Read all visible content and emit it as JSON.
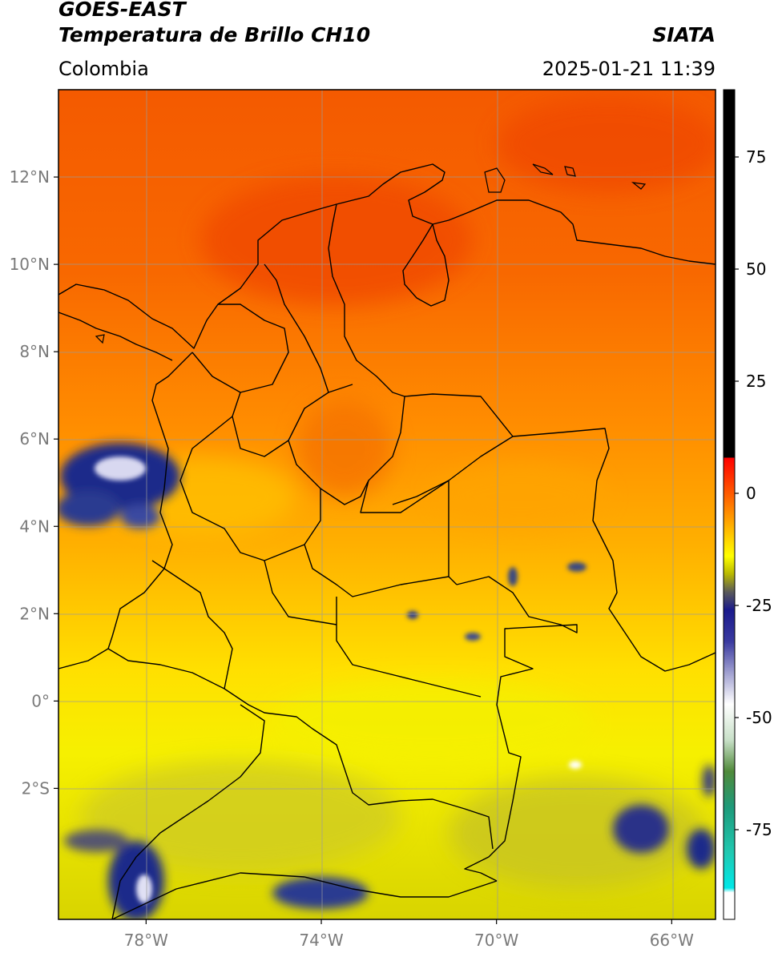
{
  "header": {
    "satellite": "GOES-EAST",
    "product": "Temperatura de Brillo CH10",
    "region": "Colombia",
    "agency": "SIATA",
    "datetime": "2025-01-21 11:39"
  },
  "map": {
    "lon_range": [
      -80,
      -65
    ],
    "lat_range": [
      -5,
      14
    ],
    "lon_ticks": [
      {
        "value": -78,
        "label": "78°W"
      },
      {
        "value": -74,
        "label": "74°W"
      },
      {
        "value": -70,
        "label": "70°W"
      },
      {
        "value": -66,
        "label": "66°W"
      }
    ],
    "lat_ticks": [
      {
        "value": 12,
        "label": "12°N"
      },
      {
        "value": 10,
        "label": "10°N"
      },
      {
        "value": 8,
        "label": "8°N"
      },
      {
        "value": 6,
        "label": "6°N"
      },
      {
        "value": 4,
        "label": "4°N"
      },
      {
        "value": 2,
        "label": "2°N"
      },
      {
        "value": 0,
        "label": "0°"
      },
      {
        "value": -2,
        "label": "2°S"
      }
    ],
    "grid": true,
    "colors": {
      "warm": "#f45a00",
      "mid": "#ff9a00",
      "cool": "#f6f000",
      "cloud": "#1a2b8a",
      "border": "#000000",
      "grid": "#9a9a9a"
    }
  },
  "colorbar": {
    "range": [
      -95,
      90
    ],
    "ticks": [
      {
        "value": 75,
        "label": "75"
      },
      {
        "value": 50,
        "label": "50"
      },
      {
        "value": 25,
        "label": "25"
      },
      {
        "value": 0,
        "label": "0"
      },
      {
        "value": -25,
        "label": "-25"
      },
      {
        "value": -50,
        "label": "-50"
      },
      {
        "value": -75,
        "label": "-75"
      }
    ],
    "stops": [
      {
        "value": 90,
        "color": "#000000"
      },
      {
        "value": 8,
        "color": "#000000"
      },
      {
        "value": 7.9,
        "color": "#ff0000"
      },
      {
        "value": 0,
        "color": "#ff5a00"
      },
      {
        "value": -10,
        "color": "#ffd000"
      },
      {
        "value": -14,
        "color": "#ffff00"
      },
      {
        "value": -18,
        "color": "#b8b800"
      },
      {
        "value": -22,
        "color": "#5a5a5a"
      },
      {
        "value": -26,
        "color": "#1a1a8c"
      },
      {
        "value": -33,
        "color": "#3a3aa0"
      },
      {
        "value": -40,
        "color": "#a0a0d0"
      },
      {
        "value": -47,
        "color": "#ffffff"
      },
      {
        "value": -55,
        "color": "#c8e0c8"
      },
      {
        "value": -62,
        "color": "#508a3a"
      },
      {
        "value": -70,
        "color": "#1e9a7a"
      },
      {
        "value": -80,
        "color": "#20c8b0"
      },
      {
        "value": -88,
        "color": "#00e8e8"
      },
      {
        "value": -89,
        "color": "#ffffff"
      },
      {
        "value": -95,
        "color": "#ffffff"
      }
    ]
  }
}
